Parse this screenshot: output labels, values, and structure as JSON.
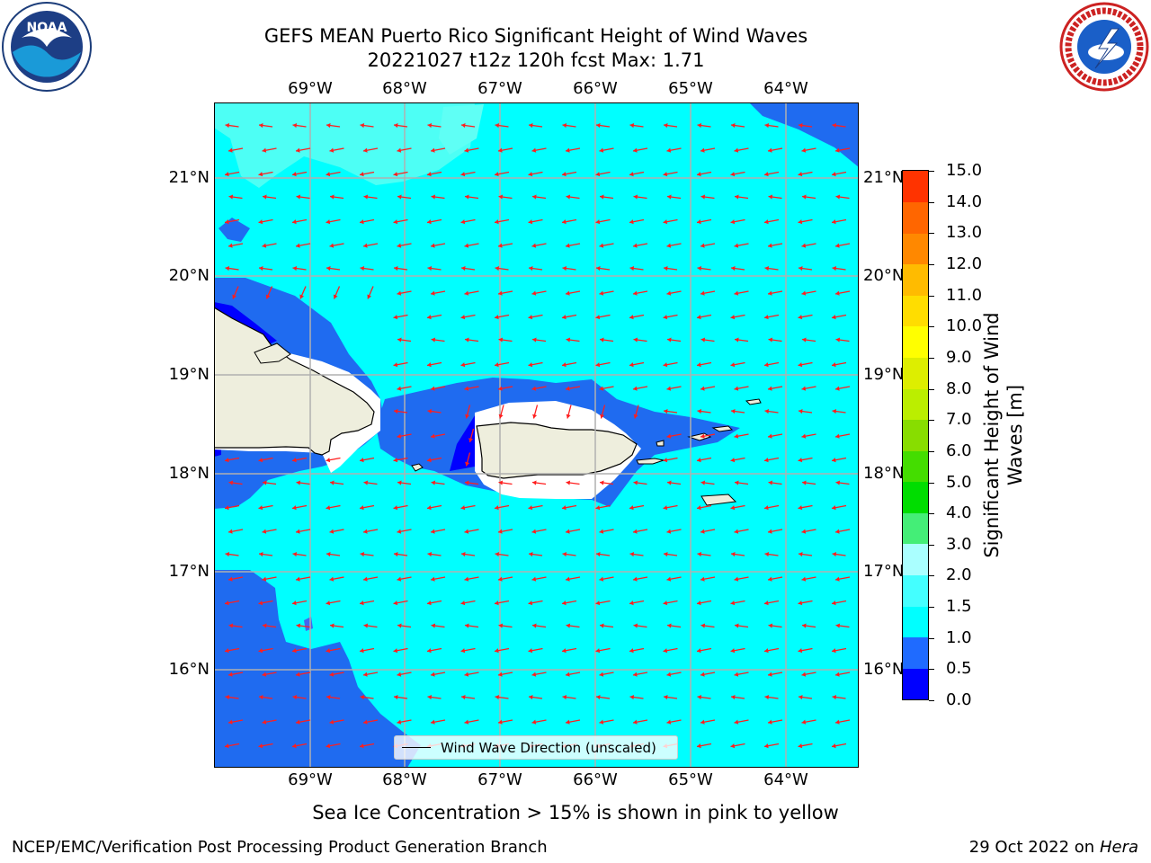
{
  "header": {
    "title_line1": "GEFS MEAN Puerto Rico Significant Height of Wind Waves",
    "title_line2": "20221027 t12z 120h fcst   Max: 1.71"
  },
  "logos": {
    "left": {
      "icon": "noaa-logo-icon",
      "text": "NOAA"
    },
    "right": {
      "icon": "nws-logo-icon",
      "ring_text": "NATIONAL WEATHER SERVICE"
    }
  },
  "map": {
    "lon_labels": [
      "69°W",
      "68°W",
      "67°W",
      "66°W",
      "65°W",
      "64°W"
    ],
    "lat_labels": [
      "21°N",
      "20°N",
      "19°N",
      "18°N",
      "17°N",
      "16°N"
    ],
    "legend_label": "Wind Wave Direction (unscaled)",
    "ocean_colors": {
      "deep": "#1f6bf0",
      "mid": "#00ffff",
      "light": "#4dfff5",
      "land": "#eeeedd"
    }
  },
  "colorbar": {
    "title": "Significant Height of Wind Waves [m]",
    "ticks": [
      "15.0",
      "14.0",
      "13.0",
      "12.0",
      "11.0",
      "10.0",
      "9.0",
      "8.0",
      "7.0",
      "6.0",
      "5.0",
      "4.0",
      "3.0",
      "2.0",
      "1.5",
      "1.0",
      "0.5",
      "0.0"
    ],
    "colors": [
      "#0000ff",
      "#1f6bff",
      "#00ffff",
      "#44ffff",
      "#aaffff",
      "#44ee77",
      "#00dd00",
      "#44dd00",
      "#88dd00",
      "#bbee00",
      "#ddee00",
      "#ffff00",
      "#ffdd00",
      "#ffbb00",
      "#ff8800",
      "#ff6600",
      "#ff3300"
    ]
  },
  "caption": "Sea Ice Concentration > 15% is shown in pink to yellow",
  "footer": {
    "left": "NCEP/EMC/Verification Post Processing Product Generation Branch",
    "right_date": "29 Oct 2022 on",
    "right_host": "Hera"
  }
}
